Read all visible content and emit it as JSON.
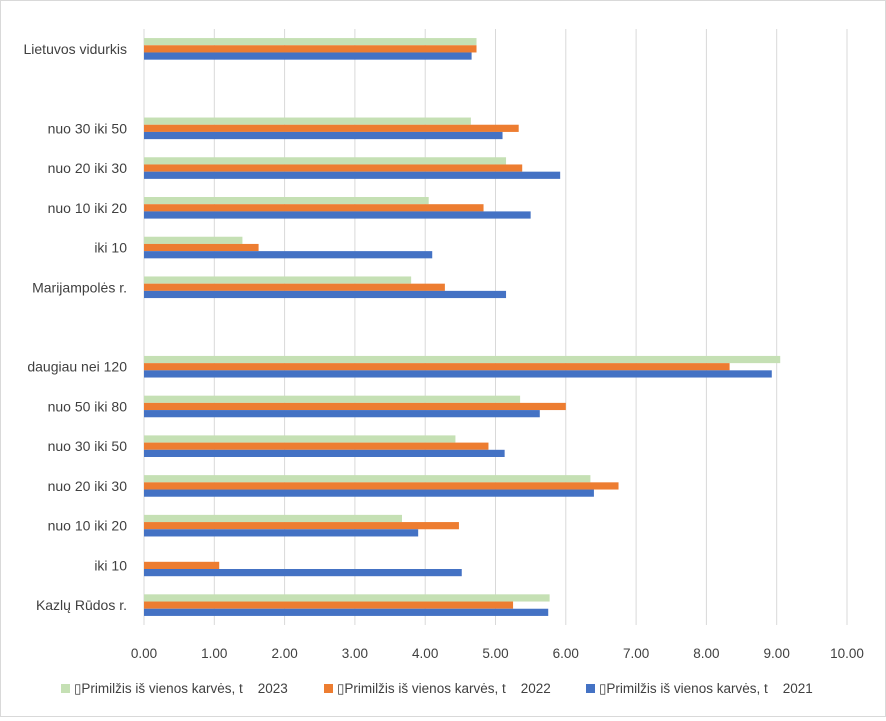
{
  "chart_data": {
    "type": "bar",
    "orientation": "horizontal",
    "categories": [
      "Lietuvos vidurkis",
      "",
      "nuo 30 iki 50",
      "nuo 20 iki 30",
      "nuo 10 iki 20",
      "iki 10",
      "Marijampolės r.",
      "",
      "daugiau nei 120",
      "nuo 50 iki 80",
      "nuo 30 iki 50",
      "nuo 20 iki 30",
      "nuo 10 iki 20",
      "iki 10",
      "Kazlų Rūdos r."
    ],
    "series": [
      {
        "name": "▯Primilžis iš vienos karvės, t    2023",
        "color": "#c5e0b4",
        "values": [
          4.73,
          null,
          4.65,
          5.15,
          4.05,
          1.4,
          3.8,
          null,
          9.05,
          5.35,
          4.43,
          6.35,
          3.67,
          null,
          5.77
        ]
      },
      {
        "name": "▯Primilžis iš vienos karvės, t    2022",
        "color": "#ed7d31",
        "values": [
          4.73,
          null,
          5.33,
          5.38,
          4.83,
          1.63,
          4.28,
          null,
          8.33,
          6.0,
          4.9,
          6.75,
          4.48,
          1.07,
          5.25
        ]
      },
      {
        "name": "▯Primilžis iš vienos karvės, t    2021",
        "color": "#4472c4",
        "values": [
          4.66,
          null,
          5.1,
          5.92,
          5.5,
          4.1,
          5.15,
          null,
          8.93,
          5.63,
          5.13,
          6.4,
          3.9,
          4.52,
          5.75
        ]
      }
    ],
    "xlim": [
      0,
      10
    ],
    "xticks": [
      "0.00",
      "1.00",
      "2.00",
      "3.00",
      "4.00",
      "5.00",
      "6.00",
      "7.00",
      "8.00",
      "9.00",
      "10.00"
    ],
    "grid": true,
    "legend_position": "bottom"
  }
}
